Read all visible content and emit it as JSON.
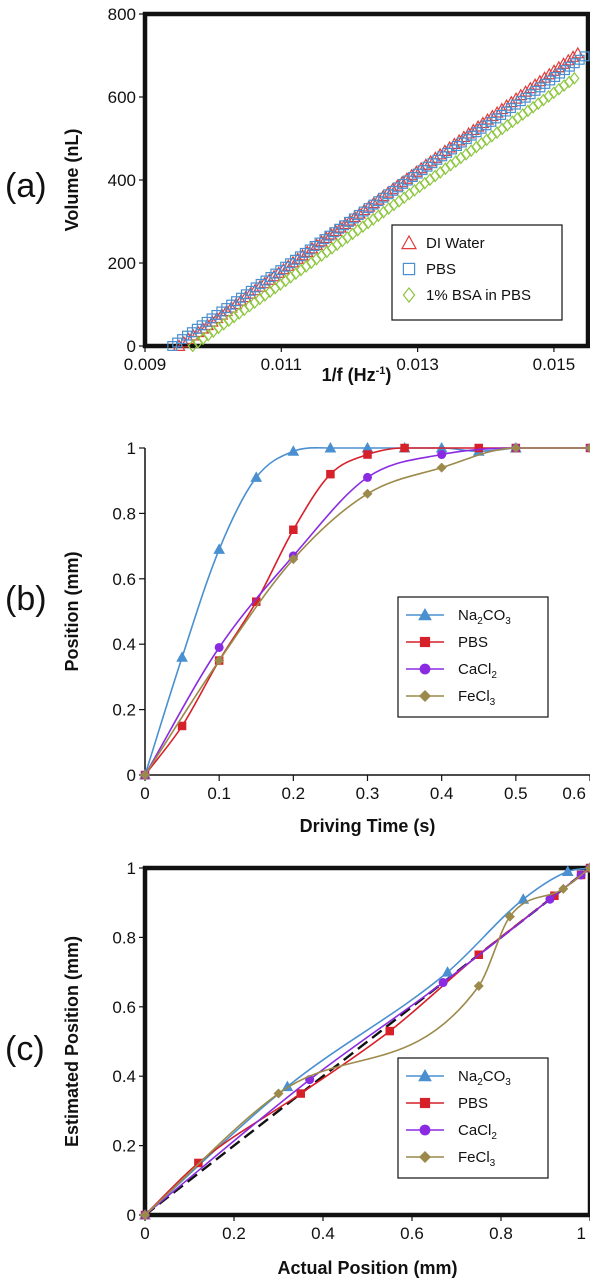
{
  "chart_data": [
    {
      "panel_label": "(a)",
      "type": "scatter",
      "xlabel": "1/f (Hz",
      "xlabel_sup": "-1",
      "xlabel_end": ")",
      "ylabel": "Volume (nL)",
      "xlim": [
        0.009,
        0.0155
      ],
      "ylim": [
        0,
        800
      ],
      "xticks": [
        "0.009",
        "0.011",
        "0.013",
        "0.015"
      ],
      "xtick_values": [
        0.009,
        0.011,
        0.013,
        0.015
      ],
      "yticks": [
        "0",
        "200",
        "400",
        "600",
        "800"
      ],
      "ytick_values": [
        0,
        200,
        400,
        600,
        800
      ],
      "legend_position": "bottom-right",
      "series": [
        {
          "name": "DI Water",
          "marker": "triangle",
          "color": "#e03a3a",
          "x_start": 0.0095,
          "x_end": 0.01535,
          "y_start": 0,
          "y_end": 705,
          "count": 85
        },
        {
          "name": "PBS",
          "marker": "square",
          "color": "#4a90d0",
          "x_start": 0.0094,
          "x_end": 0.01545,
          "y_start": 0,
          "y_end": 698,
          "count": 85
        },
        {
          "name": "1% BSA in PBS",
          "marker": "diamond",
          "color": "#8dc63f",
          "x_start": 0.0097,
          "x_end": 0.0153,
          "y_start": 0,
          "y_end": 645,
          "count": 75
        }
      ]
    },
    {
      "panel_label": "(b)",
      "type": "line",
      "xlabel": "Driving Time (s)",
      "ylabel": "Position (mm)",
      "xlim": [
        0,
        0.6
      ],
      "ylim": [
        0,
        1.0
      ],
      "xticks": [
        "0",
        "0.1",
        "0.2",
        "0.3",
        "0.4",
        "0.5",
        "0.6"
      ],
      "xtick_values": [
        0,
        0.1,
        0.2,
        0.3,
        0.4,
        0.5,
        0.6
      ],
      "yticks": [
        "0",
        "0.2",
        "0.4",
        "0.6",
        "0.8",
        "1"
      ],
      "ytick_values": [
        0,
        0.2,
        0.4,
        0.6,
        0.8,
        1
      ],
      "legend_position": "right",
      "series": [
        {
          "name": "Na",
          "sub": "2",
          "name_end": "CO",
          "sub2": "3",
          "marker": "triangle",
          "color": "#4a90d0",
          "x": [
            0,
            0.05,
            0.1,
            0.15,
            0.2,
            0.25,
            0.3,
            0.35,
            0.4,
            0.45,
            0.5
          ],
          "y": [
            0,
            0.36,
            0.69,
            0.91,
            0.99,
            1.0,
            1.0,
            1.0,
            1.0,
            0.99,
            1.0
          ]
        },
        {
          "name": "PBS",
          "sub": "",
          "name_end": "",
          "sub2": "",
          "marker": "square",
          "color": "#d6202a",
          "x": [
            0,
            0.05,
            0.1,
            0.15,
            0.2,
            0.25,
            0.3,
            0.35,
            0.45,
            0.5,
            0.6
          ],
          "y": [
            0,
            0.15,
            0.35,
            0.53,
            0.75,
            0.92,
            0.98,
            1.0,
            1.0,
            1.0,
            1.0
          ]
        },
        {
          "name": "CaCl",
          "sub": "2",
          "name_end": "",
          "sub2": "",
          "marker": "circle",
          "color": "#8a2be2",
          "x": [
            0,
            0.1,
            0.2,
            0.3,
            0.4,
            0.5,
            0.6
          ],
          "y": [
            0,
            0.39,
            0.67,
            0.91,
            0.98,
            1.0,
            1.0
          ]
        },
        {
          "name": "FeCl",
          "sub": "3",
          "name_end": "",
          "sub2": "",
          "marker": "diamond",
          "color": "#9c8a4a",
          "x": [
            0,
            0.1,
            0.2,
            0.3,
            0.4,
            0.5,
            0.6
          ],
          "y": [
            0,
            0.35,
            0.66,
            0.86,
            0.94,
            1.0,
            1.0
          ]
        }
      ]
    },
    {
      "panel_label": "(c)",
      "type": "line",
      "xlabel": "Actual Position (mm)",
      "ylabel": "Estimated Position (mm)",
      "xlim": [
        0,
        1.0
      ],
      "ylim": [
        0,
        1.0
      ],
      "xticks": [
        "0",
        "0.2",
        "0.4",
        "0.6",
        "0.8",
        "1"
      ],
      "xtick_values": [
        0,
        0.2,
        0.4,
        0.6,
        0.8,
        1
      ],
      "yticks": [
        "0",
        "0.2",
        "0.4",
        "0.6",
        "0.8",
        "1"
      ],
      "ytick_values": [
        0,
        0.2,
        0.4,
        0.6,
        0.8,
        1
      ],
      "legend_position": "bottom-right",
      "reference_line": {
        "x": [
          0,
          1
        ],
        "y": [
          0,
          1
        ],
        "style": "dashed",
        "color": "#111111"
      },
      "series": [
        {
          "name": "Na",
          "sub": "2",
          "name_end": "CO",
          "sub2": "3",
          "marker": "triangle",
          "color": "#4a90d0",
          "x": [
            0,
            0.32,
            0.68,
            0.85,
            0.95,
            1.0
          ],
          "y": [
            0,
            0.37,
            0.7,
            0.91,
            0.99,
            1.0
          ]
        },
        {
          "name": "PBS",
          "sub": "",
          "name_end": "",
          "sub2": "",
          "marker": "square",
          "color": "#d6202a",
          "x": [
            0,
            0.12,
            0.35,
            0.55,
            0.75,
            0.92,
            0.98,
            1.0
          ],
          "y": [
            0,
            0.15,
            0.35,
            0.53,
            0.75,
            0.92,
            0.98,
            1.0
          ]
        },
        {
          "name": "CaCl",
          "sub": "2",
          "name_end": "",
          "sub2": "",
          "marker": "circle",
          "color": "#8a2be2",
          "x": [
            0,
            0.37,
            0.67,
            0.91,
            0.98,
            1.0
          ],
          "y": [
            0,
            0.39,
            0.67,
            0.91,
            0.98,
            1.0
          ]
        },
        {
          "name": "FeCl",
          "sub": "3",
          "name_end": "",
          "sub2": "",
          "marker": "diamond",
          "color": "#9c8a4a",
          "x": [
            0,
            0.3,
            0.75,
            0.82,
            0.94,
            1.0
          ],
          "y": [
            0,
            0.35,
            0.66,
            0.86,
            0.94,
            1.0
          ]
        }
      ]
    }
  ]
}
